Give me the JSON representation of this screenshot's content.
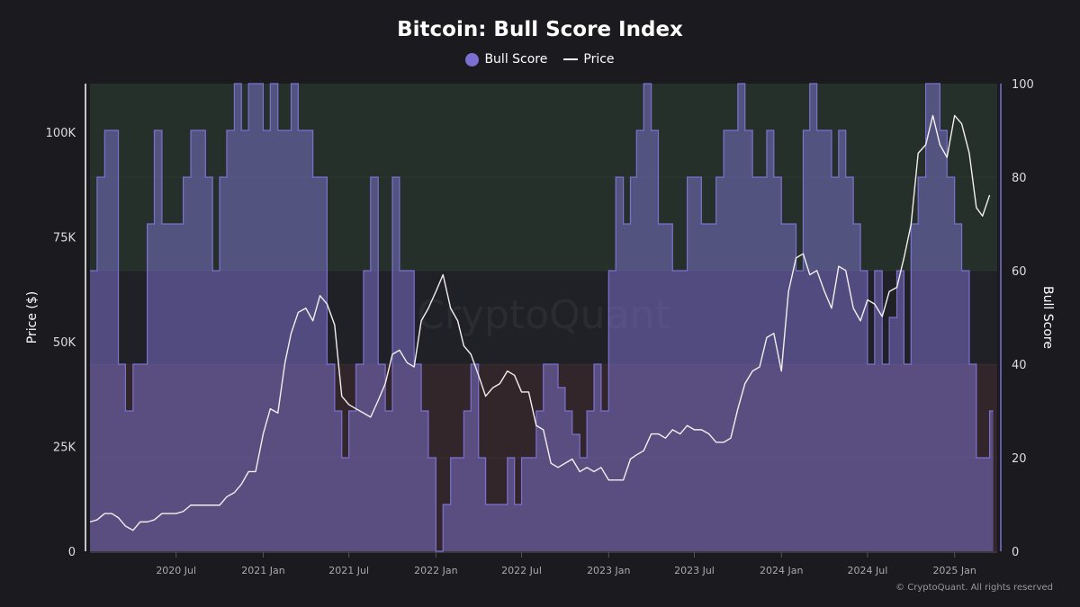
{
  "chart_data": {
    "type": "area+line",
    "title": "Bitcoin: Bull Score Index",
    "legend": [
      {
        "name": "Bull Score",
        "color": "#7b6fd0",
        "marker": "circle"
      },
      {
        "name": "Price",
        "color": "#ffffff",
        "marker": "line"
      }
    ],
    "legend_placement": "top-center",
    "y_left": {
      "label": "Price ($)",
      "ticks": [
        0,
        25000,
        50000,
        75000,
        100000
      ],
      "tick_labels": [
        "0",
        "25K",
        "50K",
        "75K",
        "100K"
      ],
      "range": [
        0,
        111600
      ]
    },
    "y_right": {
      "label": "Bull Score",
      "ticks": [
        0,
        20,
        40,
        60,
        80,
        100
      ],
      "tick_labels": [
        "0",
        "20",
        "40",
        "60",
        "80",
        "100"
      ],
      "range": [
        0,
        100
      ]
    },
    "x_axis": {
      "range": [
        "2020-01-01",
        "2025-04-01"
      ],
      "ticks": [
        "2020-07-01",
        "2021-01-01",
        "2021-07-01",
        "2022-01-01",
        "2022-07-01",
        "2023-01-01",
        "2023-07-01",
        "2024-01-01",
        "2024-07-01",
        "2025-01-01"
      ],
      "tick_labels": [
        "2020 Jul",
        "2021 Jan",
        "2021 Jul",
        "2022 Jan",
        "2022 Jul",
        "2023 Jan",
        "2023 Jul",
        "2024 Jan",
        "2024 Jul",
        "2025 Jan"
      ]
    },
    "zones": [
      {
        "from": 60,
        "to": 100,
        "color": "#243029"
      },
      {
        "from": 40,
        "to": 60,
        "color": "#202027"
      },
      {
        "from": 0,
        "to": 40,
        "color": "#32262a"
      }
    ],
    "grid": false,
    "x": [
      "2020-01-01",
      "2020-01-16",
      "2020-02-01",
      "2020-02-16",
      "2020-03-01",
      "2020-03-16",
      "2020-04-01",
      "2020-04-16",
      "2020-05-01",
      "2020-05-16",
      "2020-06-01",
      "2020-06-16",
      "2020-07-01",
      "2020-07-16",
      "2020-08-01",
      "2020-08-16",
      "2020-09-01",
      "2020-09-16",
      "2020-10-01",
      "2020-10-16",
      "2020-11-01",
      "2020-11-16",
      "2020-12-01",
      "2020-12-16",
      "2021-01-01",
      "2021-01-16",
      "2021-02-01",
      "2021-02-16",
      "2021-03-01",
      "2021-03-16",
      "2021-04-01",
      "2021-04-16",
      "2021-05-01",
      "2021-05-16",
      "2021-06-01",
      "2021-06-16",
      "2021-07-01",
      "2021-07-16",
      "2021-08-01",
      "2021-08-16",
      "2021-09-01",
      "2021-09-16",
      "2021-10-01",
      "2021-10-16",
      "2021-11-01",
      "2021-11-16",
      "2021-12-01",
      "2021-12-16",
      "2022-01-01",
      "2022-01-16",
      "2022-02-01",
      "2022-02-16",
      "2022-03-01",
      "2022-03-16",
      "2022-04-01",
      "2022-04-16",
      "2022-05-01",
      "2022-05-16",
      "2022-06-01",
      "2022-06-16",
      "2022-07-01",
      "2022-07-16",
      "2022-08-01",
      "2022-08-16",
      "2022-09-01",
      "2022-09-16",
      "2022-10-01",
      "2022-10-16",
      "2022-11-01",
      "2022-11-16",
      "2022-12-01",
      "2022-12-16",
      "2023-01-01",
      "2023-01-16",
      "2023-02-01",
      "2023-02-16",
      "2023-03-01",
      "2023-03-16",
      "2023-04-01",
      "2023-04-16",
      "2023-05-01",
      "2023-05-16",
      "2023-06-01",
      "2023-06-16",
      "2023-07-01",
      "2023-07-16",
      "2023-08-01",
      "2023-08-16",
      "2023-09-01",
      "2023-09-16",
      "2023-10-01",
      "2023-10-16",
      "2023-11-01",
      "2023-11-16",
      "2023-12-01",
      "2023-12-16",
      "2024-01-01",
      "2024-01-16",
      "2024-02-01",
      "2024-02-16",
      "2024-03-01",
      "2024-03-16",
      "2024-04-01",
      "2024-04-16",
      "2024-05-01",
      "2024-05-16",
      "2024-06-01",
      "2024-06-16",
      "2024-07-01",
      "2024-07-16",
      "2024-08-01",
      "2024-08-16",
      "2024-09-01",
      "2024-09-16",
      "2024-10-01",
      "2024-10-16",
      "2024-11-01",
      "2024-11-16",
      "2024-12-01",
      "2024-12-16",
      "2025-01-01",
      "2025-01-16",
      "2025-02-01",
      "2025-02-16",
      "2025-03-01",
      "2025-03-16"
    ],
    "series": [
      {
        "name": "Bull Score",
        "axis": "right",
        "style": "step-area",
        "values": [
          60,
          80,
          90,
          90,
          40,
          30,
          40,
          40,
          70,
          90,
          70,
          70,
          70,
          80,
          90,
          90,
          80,
          60,
          80,
          90,
          100,
          90,
          100,
          100,
          90,
          100,
          90,
          90,
          100,
          90,
          90,
          80,
          80,
          40,
          30,
          20,
          30,
          40,
          60,
          80,
          40,
          30,
          80,
          60,
          60,
          40,
          30,
          20,
          0,
          10,
          20,
          20,
          30,
          40,
          20,
          10,
          10,
          10,
          20,
          10,
          20,
          20,
          30,
          40,
          40,
          35,
          30,
          25,
          20,
          30,
          40,
          30,
          60,
          80,
          70,
          80,
          90,
          100,
          90,
          70,
          70,
          60,
          60,
          80,
          80,
          70,
          70,
          80,
          90,
          90,
          100,
          90,
          80,
          80,
          90,
          80,
          70,
          70,
          60,
          90,
          100,
          90,
          90,
          80,
          90,
          80,
          70,
          60,
          40,
          60,
          40,
          50,
          60,
          40,
          70,
          80,
          100,
          100,
          90,
          80,
          70,
          60,
          40,
          20,
          20,
          30
        ]
      },
      {
        "name": "Price",
        "axis": "left",
        "style": "line",
        "values": [
          7000,
          7500,
          9000,
          9000,
          8000,
          6000,
          5000,
          7000,
          7000,
          7500,
          9000,
          9000,
          9000,
          9500,
          11000,
          11000,
          11000,
          11000,
          11000,
          13000,
          14000,
          16000,
          19000,
          19000,
          28000,
          34000,
          33000,
          45000,
          52000,
          57000,
          58000,
          55000,
          61000,
          59000,
          54000,
          37000,
          35000,
          34000,
          33000,
          32000,
          36000,
          40000,
          47000,
          48000,
          45000,
          44000,
          55000,
          58000,
          62000,
          66000,
          58000,
          55000,
          49000,
          47000,
          42000,
          37000,
          39000,
          40000,
          43000,
          42000,
          38000,
          38000,
          30000,
          29000,
          21000,
          20000,
          21000,
          22000,
          19000,
          20000,
          19000,
          20000,
          17000,
          17000,
          17000,
          22000,
          23000,
          24000,
          28000,
          28000,
          27000,
          29000,
          28000,
          30000,
          29000,
          29000,
          28000,
          26000,
          26000,
          27000,
          34000,
          40000,
          43000,
          44000,
          51000,
          52000,
          43000,
          62000,
          70000,
          71000,
          66000,
          67000,
          62000,
          58000,
          68000,
          67000,
          58000,
          55000,
          60000,
          59000,
          56000,
          62000,
          63000,
          70000,
          78000,
          95000,
          97000,
          104000,
          97000,
          94000,
          104000,
          102000,
          95000,
          82000,
          80000,
          85000
        ]
      }
    ],
    "watermark": "CryptoQuant",
    "copyright": "© CryptoQuant. All rights reserved"
  }
}
